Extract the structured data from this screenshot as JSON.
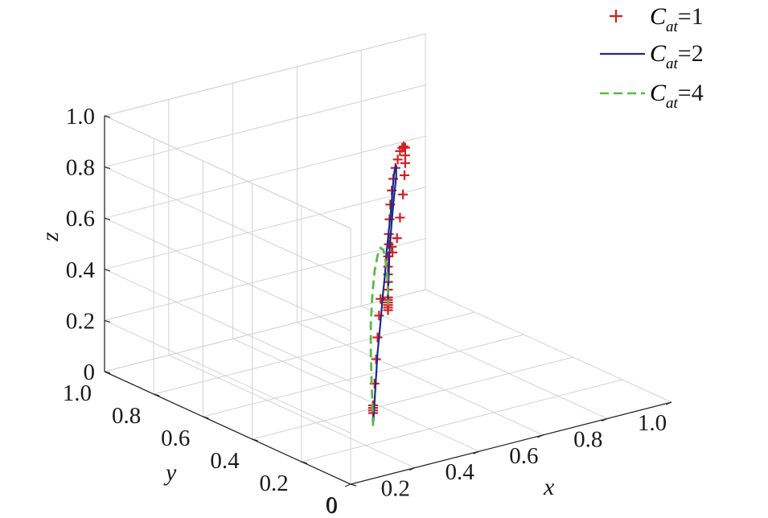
{
  "chart_data": {
    "type": "scatter",
    "projection": "3d",
    "grid": true,
    "legend_placement": "top-right",
    "x_axis": {
      "label": "x",
      "range": [
        0,
        1
      ],
      "tick_labels": [
        "0",
        "0.2",
        "0.4",
        "0.6",
        "0.8",
        "1.0"
      ]
    },
    "y_axis": {
      "label": "y",
      "range": [
        0,
        1
      ],
      "tick_labels": [
        "0",
        "0.2",
        "0.4",
        "0.6",
        "0.8",
        "1.0"
      ]
    },
    "z_axis": {
      "label": "z",
      "range": [
        0,
        1
      ],
      "tick_labels": [
        "0",
        "0.2",
        "0.4",
        "0.6",
        "0.8",
        "1.0"
      ]
    },
    "series": [
      {
        "legend_symbol": "C",
        "legend_subscript": "at",
        "legend_value": "=1",
        "style": "markers-plus",
        "color": "#d42020",
        "points": [
          [
            0.3,
            0.3,
            0.05
          ],
          [
            0.3,
            0.3,
            0.06
          ],
          [
            0.3,
            0.3,
            0.07
          ],
          [
            0.3,
            0.3,
            0.08
          ],
          [
            0.32,
            0.32,
            0.15
          ],
          [
            0.34,
            0.34,
            0.23
          ],
          [
            0.36,
            0.36,
            0.3
          ],
          [
            0.38,
            0.38,
            0.37
          ],
          [
            0.4,
            0.4,
            0.42
          ],
          [
            0.5,
            0.5,
            0.3
          ],
          [
            0.5,
            0.5,
            0.31
          ],
          [
            0.5,
            0.5,
            0.32
          ],
          [
            0.5,
            0.5,
            0.33
          ],
          [
            0.5,
            0.5,
            0.34
          ],
          [
            0.5,
            0.5,
            0.35
          ],
          [
            0.5,
            0.5,
            0.38
          ],
          [
            0.5,
            0.5,
            0.41
          ],
          [
            0.5,
            0.5,
            0.44
          ],
          [
            0.5,
            0.5,
            0.47
          ],
          [
            0.5,
            0.5,
            0.51
          ],
          [
            0.51,
            0.51,
            0.55
          ],
          [
            0.51,
            0.51,
            0.59
          ],
          [
            0.52,
            0.52,
            0.64
          ],
          [
            0.53,
            0.53,
            0.69
          ],
          [
            0.55,
            0.55,
            0.73
          ],
          [
            0.57,
            0.57,
            0.76
          ],
          [
            0.6,
            0.6,
            0.78
          ],
          [
            0.63,
            0.63,
            0.79
          ],
          [
            0.66,
            0.66,
            0.8
          ],
          [
            0.69,
            0.69,
            0.79
          ],
          [
            0.71,
            0.71,
            0.78
          ],
          [
            0.73,
            0.73,
            0.76
          ],
          [
            0.73,
            0.73,
            0.73
          ],
          [
            0.73,
            0.73,
            0.7
          ],
          [
            0.72,
            0.72,
            0.66
          ],
          [
            0.7,
            0.7,
            0.6
          ],
          [
            0.66,
            0.66,
            0.54
          ],
          [
            0.62,
            0.62,
            0.49
          ],
          [
            0.56,
            0.56,
            0.48
          ],
          [
            0.55,
            0.55,
            0.51
          ]
        ]
      },
      {
        "legend_symbol": "C",
        "legend_subscript": "at",
        "legend_value": "=2",
        "style": "solid",
        "color": "#1a2a8c",
        "points": [
          [
            0.3,
            0.3,
            0.0
          ],
          [
            0.33,
            0.33,
            0.12
          ],
          [
            0.36,
            0.36,
            0.24
          ],
          [
            0.4,
            0.4,
            0.33
          ],
          [
            0.43,
            0.43,
            0.41
          ],
          [
            0.46,
            0.46,
            0.47
          ],
          [
            0.48,
            0.48,
            0.54
          ],
          [
            0.51,
            0.51,
            0.6
          ],
          [
            0.54,
            0.54,
            0.66
          ],
          [
            0.56,
            0.56,
            0.72
          ],
          [
            0.58,
            0.58,
            0.77
          ],
          [
            0.6,
            0.6,
            0.79
          ],
          [
            0.61,
            0.61,
            0.78
          ],
          [
            0.61,
            0.61,
            0.74
          ],
          [
            0.58,
            0.58,
            0.68
          ],
          [
            0.55,
            0.55,
            0.61
          ],
          [
            0.52,
            0.52,
            0.52
          ],
          [
            0.51,
            0.51,
            0.43
          ],
          [
            0.5,
            0.5,
            0.36
          ],
          [
            0.5,
            0.5,
            0.32
          ]
        ]
      },
      {
        "legend_symbol": "C",
        "legend_subscript": "at",
        "legend_value": "=4",
        "style": "dashed",
        "color": "#5cb847",
        "points": [
          [
            0.3,
            0.3,
            0.0
          ],
          [
            0.29,
            0.29,
            0.1
          ],
          [
            0.28,
            0.28,
            0.2
          ],
          [
            0.27,
            0.27,
            0.31
          ],
          [
            0.27,
            0.27,
            0.42
          ],
          [
            0.29,
            0.29,
            0.52
          ],
          [
            0.32,
            0.32,
            0.59
          ],
          [
            0.36,
            0.36,
            0.62
          ],
          [
            0.4,
            0.4,
            0.62
          ],
          [
            0.44,
            0.44,
            0.58
          ],
          [
            0.47,
            0.47,
            0.51
          ],
          [
            0.49,
            0.49,
            0.44
          ],
          [
            0.5,
            0.5,
            0.37
          ],
          [
            0.5,
            0.5,
            0.32
          ]
        ]
      }
    ]
  }
}
